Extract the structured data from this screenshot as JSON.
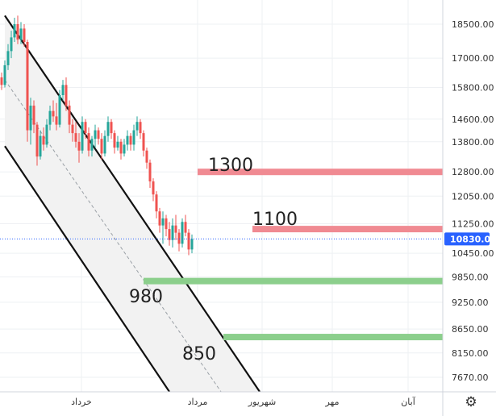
{
  "chart_data": {
    "type": "candlestick",
    "x_axis_labels": [
      "خرداد",
      "مرداد",
      "شهریور",
      "مهر",
      "آبان"
    ],
    "y_ticks": [
      18500,
      17000,
      15800,
      14600,
      13800,
      12800,
      12050,
      11250,
      10450,
      9850,
      9250,
      8650,
      8150,
      7670
    ],
    "ylim": [
      7450,
      19300
    ],
    "y_scale": "log",
    "current_price": 10830,
    "current_price_label": "10830.00",
    "up_color": "#26a69a",
    "down_color": "#ef5350",
    "levels": [
      {
        "label": "1300",
        "value": 12800,
        "color": "#f08a92"
      },
      {
        "label": "1100",
        "value": 11100,
        "color": "#f08a92"
      },
      {
        "label": "980",
        "value": 9750,
        "color": "#8ccf8c"
      },
      {
        "label": "850",
        "value": 8480,
        "color": "#8ccf8c"
      }
    ],
    "channel": {
      "upper": [
        [
          1,
          18900
        ],
        [
          80,
          7400
        ]
      ],
      "lower": [
        [
          1,
          13650
        ],
        [
          52,
          7400
        ]
      ],
      "middle": [
        [
          1,
          16100
        ],
        [
          68,
          7400
        ]
      ],
      "fill_color": "#f2f2f2",
      "line_color": "#111111"
    },
    "candles": [
      [
        16200,
        16400,
        15700,
        15900
      ],
      [
        15900,
        16900,
        15800,
        16700
      ],
      [
        16700,
        17600,
        16500,
        17300
      ],
      [
        17300,
        18200,
        17000,
        17900
      ],
      [
        17900,
        18800,
        17700,
        18500
      ],
      [
        18500,
        18900,
        17600,
        17800
      ],
      [
        17800,
        18600,
        17600,
        18300
      ],
      [
        18300,
        18500,
        17500,
        17700
      ],
      [
        17700,
        17800,
        13800,
        14200
      ],
      [
        14200,
        15400,
        13700,
        15100
      ],
      [
        15100,
        15300,
        14100,
        14400
      ],
      [
        14400,
        14500,
        13000,
        13300
      ],
      [
        13300,
        14200,
        13200,
        14000
      ],
      [
        14000,
        14300,
        13500,
        13700
      ],
      [
        13700,
        14600,
        13600,
        14400
      ],
      [
        14400,
        15100,
        14200,
        14900
      ],
      [
        14900,
        15300,
        14500,
        14700
      ],
      [
        14700,
        15200,
        14200,
        14400
      ],
      [
        14400,
        15700,
        14300,
        15500
      ],
      [
        15500,
        16100,
        15300,
        15900
      ],
      [
        15900,
        16200,
        14900,
        15100
      ],
      [
        15100,
        15300,
        14100,
        14400
      ],
      [
        14400,
        14600,
        13800,
        14100
      ],
      [
        14100,
        14500,
        13600,
        13800
      ],
      [
        13800,
        14100,
        13100,
        13500
      ],
      [
        13500,
        14700,
        13400,
        14500
      ],
      [
        14500,
        14600,
        13900,
        14100
      ],
      [
        14100,
        14300,
        13300,
        13500
      ],
      [
        13500,
        14000,
        13300,
        13900
      ],
      [
        13900,
        14400,
        13600,
        14200
      ],
      [
        14200,
        14300,
        13700,
        13900
      ],
      [
        13900,
        14100,
        13200,
        13400
      ],
      [
        13400,
        14200,
        13300,
        14000
      ],
      [
        14000,
        14700,
        13800,
        14500
      ],
      [
        14500,
        14600,
        13900,
        14100
      ],
      [
        14100,
        14200,
        13400,
        13600
      ],
      [
        13600,
        14000,
        13500,
        13800
      ],
      [
        13800,
        13900,
        13200,
        13400
      ],
      [
        13400,
        13900,
        13300,
        13700
      ],
      [
        13700,
        14200,
        13500,
        14000
      ],
      [
        14000,
        14100,
        13500,
        13700
      ],
      [
        13700,
        14400,
        13500,
        14200
      ],
      [
        14200,
        14700,
        14000,
        14500
      ],
      [
        14500,
        14600,
        13900,
        14100
      ],
      [
        14100,
        14200,
        13300,
        13500
      ],
      [
        13500,
        13600,
        12900,
        13100
      ],
      [
        13100,
        13200,
        12300,
        12500
      ],
      [
        12500,
        12600,
        11900,
        12100
      ],
      [
        12100,
        12200,
        11400,
        11600
      ],
      [
        11600,
        11700,
        11000,
        11200
      ],
      [
        11200,
        11600,
        10700,
        11400
      ],
      [
        11400,
        11500,
        10900,
        11100
      ],
      [
        11100,
        11300,
        10650,
        10800
      ],
      [
        10800,
        11400,
        10600,
        11200
      ],
      [
        11200,
        11500,
        10800,
        11000
      ],
      [
        11000,
        11100,
        10500,
        10700
      ],
      [
        10700,
        11400,
        10600,
        11300
      ],
      [
        11300,
        11500,
        10900,
        11000
      ],
      [
        11000,
        11100,
        10400,
        10550
      ],
      [
        10550,
        10950,
        10450,
        10830
      ]
    ]
  },
  "ui": {
    "settings_icon": "gear-icon"
  }
}
